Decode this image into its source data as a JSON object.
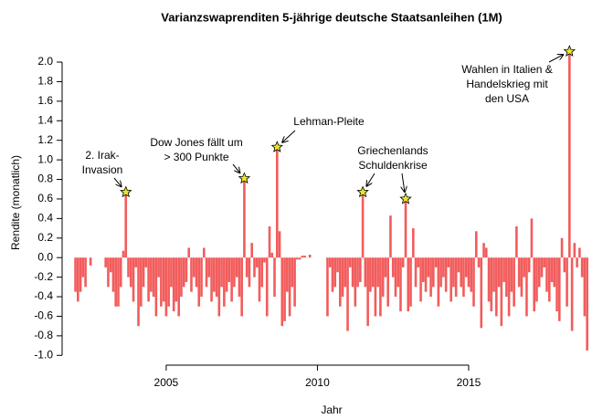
{
  "chart_data": {
    "type": "bar",
    "title": "Varianzswaprenditen 5-jährige deutsche Staatsanleihen (1M)",
    "xlabel": "Jahr",
    "ylabel": "Rendite (monatlich)",
    "color": "#f25c5c",
    "xlim": [
      2001.56,
      2019.29
    ],
    "xticks": [
      2005,
      2010,
      2015
    ],
    "ylim": [
      -1.1,
      2.215
    ],
    "yticks": [
      {
        "value": -1,
        "label": "-1.0"
      },
      -0.8,
      -0.6,
      -0.4,
      -0.2,
      {
        "value": 0,
        "label": "0.0"
      },
      0.2,
      0.4,
      0.6,
      0.8,
      {
        "value": 1,
        "label": "1.0"
      },
      1.2,
      1.4,
      1.6,
      1.8,
      {
        "value": 2,
        "label": "2.0"
      }
    ],
    "x": [
      2002,
      2002.083,
      2002.167,
      2002.25,
      2002.333,
      2002.417,
      2002.5,
      2002.583,
      2002.667,
      2002.75,
      2002.833,
      2002.917,
      2003,
      2003.083,
      2003.167,
      2003.25,
      2003.333,
      2003.417,
      2003.5,
      2003.583,
      2003.667,
      2003.75,
      2003.833,
      2003.917,
      2004,
      2004.083,
      2004.167,
      2004.25,
      2004.333,
      2004.417,
      2004.5,
      2004.583,
      2004.667,
      2004.75,
      2004.833,
      2004.917,
      2005,
      2005.083,
      2005.167,
      2005.25,
      2005.333,
      2005.417,
      2005.5,
      2005.583,
      2005.667,
      2005.75,
      2005.833,
      2005.917,
      2006,
      2006.083,
      2006.167,
      2006.25,
      2006.333,
      2006.417,
      2006.5,
      2006.583,
      2006.667,
      2006.75,
      2006.833,
      2006.917,
      2007,
      2007.083,
      2007.167,
      2007.25,
      2007.333,
      2007.417,
      2007.5,
      2007.583,
      2007.667,
      2007.75,
      2007.833,
      2007.917,
      2008,
      2008.083,
      2008.167,
      2008.25,
      2008.333,
      2008.417,
      2008.5,
      2008.583,
      2008.667,
      2008.75,
      2008.833,
      2008.917,
      2009,
      2009.083,
      2009.167,
      2009.25,
      2009.333,
      2009.417,
      2009.5,
      2009.583,
      2009.667,
      2009.75,
      2009.833,
      2009.917,
      2010,
      2010.083,
      2010.167,
      2010.25,
      2010.333,
      2010.417,
      2010.5,
      2010.583,
      2010.667,
      2010.75,
      2010.833,
      2010.917,
      2011,
      2011.083,
      2011.167,
      2011.25,
      2011.333,
      2011.417,
      2011.5,
      2011.583,
      2011.667,
      2011.75,
      2011.833,
      2011.917,
      2012,
      2012.083,
      2012.167,
      2012.25,
      2012.333,
      2012.417,
      2012.5,
      2012.583,
      2012.667,
      2012.75,
      2012.833,
      2012.917,
      2013,
      2013.083,
      2013.167,
      2013.25,
      2013.333,
      2013.417,
      2013.5,
      2013.583,
      2013.667,
      2013.75,
      2013.833,
      2013.917,
      2014,
      2014.083,
      2014.167,
      2014.25,
      2014.333,
      2014.417,
      2014.5,
      2014.583,
      2014.667,
      2014.75,
      2014.833,
      2014.917,
      2015,
      2015.083,
      2015.167,
      2015.25,
      2015.333,
      2015.417,
      2015.5,
      2015.583,
      2015.667,
      2015.75,
      2015.833,
      2015.917,
      2016,
      2016.083,
      2016.167,
      2016.25,
      2016.333,
      2016.417,
      2016.5,
      2016.583,
      2016.667,
      2016.75,
      2016.833,
      2016.917,
      2017,
      2017.083,
      2017.167,
      2017.25,
      2017.333,
      2017.417,
      2017.5,
      2017.583,
      2017.667,
      2017.75,
      2017.833,
      2017.917,
      2018,
      2018.083,
      2018.167,
      2018.25,
      2018.333,
      2018.417,
      2018.5,
      2018.583,
      2018.667,
      2018.75,
      2018.833,
      2018.917
    ],
    "values": [
      -0.35,
      -0.45,
      -0.35,
      -0.2,
      -0.3,
      0,
      -0.08,
      0,
      0,
      0,
      0,
      0,
      -0.1,
      -0.3,
      -0.15,
      -0.35,
      -0.5,
      -0.5,
      -0.3,
      0.07,
      0.67,
      -0.2,
      -0.3,
      -0.45,
      -0.1,
      -0.7,
      -0.5,
      -0.3,
      -0.1,
      -0.45,
      -0.35,
      -0.4,
      -0.6,
      -0.2,
      -0.5,
      -0.45,
      -0.6,
      -0.5,
      -0.3,
      -0.55,
      -0.45,
      -0.6,
      -0.4,
      -0.3,
      -0.25,
      0.1,
      -0.35,
      -0.2,
      -0.3,
      -0.5,
      -0.4,
      0.1,
      -0.3,
      -0.2,
      -0.45,
      -0.35,
      -0.4,
      -0.6,
      -0.3,
      -0.5,
      -0.35,
      -0.25,
      -0.45,
      -0.3,
      -0.2,
      -0.4,
      -0.6,
      0.81,
      -0.2,
      -0.3,
      0.15,
      -0.2,
      -0.1,
      -0.45,
      -0.3,
      -0.05,
      -0.6,
      0.32,
      0.05,
      -0.4,
      1.13,
      0.27,
      -0.7,
      -0.65,
      -0.35,
      -0.6,
      -0.3,
      -0.5,
      -0.02,
      -0.02,
      0.02,
      0.02,
      0,
      0.03,
      0,
      0,
      0,
      0,
      0,
      0,
      -0.6,
      -0.1,
      -0.35,
      -0.3,
      -0.15,
      -0.5,
      -0.4,
      -0.3,
      -0.75,
      -0.1,
      -0.3,
      -0.5,
      -0.3,
      -0.25,
      0.67,
      -0.3,
      -0.7,
      -0.35,
      -0.3,
      -0.6,
      -0.3,
      -0.6,
      -0.4,
      -0.2,
      -0.5,
      0.43,
      -0.2,
      -0.4,
      -0.3,
      -0.55,
      -0.1,
      0.6,
      -0.55,
      -0.5,
      0.3,
      -0.3,
      -0.1,
      -0.45,
      -0.25,
      -0.35,
      -0.2,
      -0.4,
      -0.3,
      -0.1,
      -0.5,
      -0.3,
      -0.2,
      -0.35,
      -0.1,
      -0.45,
      -0.3,
      -0.4,
      -0.15,
      -0.3,
      -0.4,
      -0.2,
      -0.3,
      -0.35,
      -0.5,
      0.27,
      -0.1,
      -0.72,
      0.15,
      0.1,
      -0.45,
      -0.55,
      -0.35,
      -0.6,
      -0.3,
      -0.7,
      -0.25,
      -0.4,
      -0.6,
      -0.35,
      -0.5,
      0.32,
      -0.3,
      -0.4,
      -0.2,
      -0.6,
      -0.15,
      0.4,
      -0.55,
      -0.45,
      -0.3,
      -0.2,
      -0.1,
      -0.35,
      -0.45,
      -0.25,
      -0.3,
      -0.55,
      -0.65,
      0.2,
      -0.15,
      -0.5,
      2.11,
      -0.75,
      0.15,
      -0.1,
      0.1,
      -0.2,
      -0.6,
      -0.95
    ],
    "annotations": [
      {
        "text": [
          "2. Irak-",
          "Invasion"
        ],
        "x": [
          2003.667
        ]
      },
      {
        "text": [
          "Dow Jones fällt um",
          "> 300 Punkte"
        ],
        "x": [
          2007.583
        ]
      },
      {
        "text": [
          "Lehman-Pleite"
        ],
        "x": [
          2008.667
        ]
      },
      {
        "text": [
          "Griechenlands",
          "Schuldenkrise"
        ],
        "x": [
          2011.5,
          2012.917
        ]
      },
      {
        "text": [
          "Wahlen in Italien &",
          "Handelskrieg mit",
          "den USA"
        ],
        "x": [
          2018.333
        ]
      }
    ]
  }
}
